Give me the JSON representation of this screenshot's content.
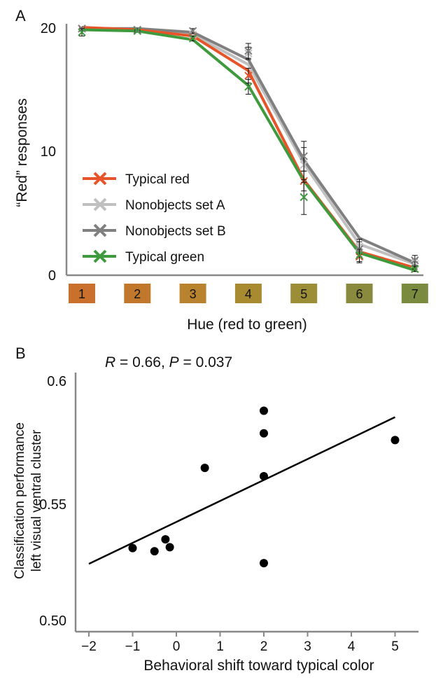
{
  "chart_data": [
    {
      "panel_label": "A",
      "type": "line",
      "xlabel": "Hue (red to green)",
      "ylabel": "“Red” responses",
      "categories": [
        "1",
        "2",
        "3",
        "4",
        "5",
        "6",
        "7"
      ],
      "category_colors": [
        "#C8702C",
        "#C2782C",
        "#B8822E",
        "#A88A30",
        "#9C8E36",
        "#8A8A3E",
        "#7A8A3E"
      ],
      "ylim": [
        0,
        20
      ],
      "yticks": [
        "0",
        "10",
        "20"
      ],
      "legend_position": "lower-left",
      "series": [
        {
          "name": "Typical red",
          "color": "#E8542A",
          "values": [
            20,
            19.8,
            19.3,
            16.5,
            7.7,
            1.9,
            0.6
          ],
          "markers": [
            19.9,
            19.8,
            19.3,
            16.1,
            7.6,
            1.5,
            0.5
          ],
          "errors": [
            0.1,
            0.1,
            0.2,
            0.6,
            0.8,
            0.5,
            0.2
          ]
        },
        {
          "name": "Nonobjects set A",
          "color": "#C0C0C0",
          "values": [
            19.9,
            19.8,
            19.4,
            17.0,
            9.0,
            2.5,
            0.9
          ],
          "markers": [
            19.9,
            19.8,
            19.4,
            17.9,
            8.9,
            2.3,
            0.9
          ],
          "errors": [
            0.1,
            0.1,
            0.2,
            0.5,
            1.4,
            0.6,
            0.4
          ]
        },
        {
          "name": "Nonobjects set B",
          "color": "#808080",
          "values": [
            19.9,
            19.9,
            19.6,
            17.4,
            9.3,
            3.0,
            1.0
          ],
          "markers": [
            19.9,
            19.8,
            19.7,
            18.1,
            9.6,
            2.1,
            1.2
          ],
          "errors": [
            0.1,
            0.1,
            0.2,
            0.6,
            1.2,
            0.6,
            0.4
          ]
        },
        {
          "name": "Typical green",
          "color": "#3F9A3E",
          "values": [
            19.8,
            19.7,
            19.0,
            15.3,
            7.6,
            1.8,
            0.4
          ],
          "markers": [
            19.6,
            19.7,
            19.1,
            15.2,
            6.3,
            1.6,
            0.5
          ],
          "errors": [
            0.3,
            0.1,
            0.2,
            0.6,
            1.4,
            0.5,
            0.2
          ]
        }
      ]
    },
    {
      "panel_label": "B",
      "type": "scatter",
      "annotation": {
        "r_label": "R",
        "r_value": " = 0.66, ",
        "p_label": "P",
        "p_value": " = 0.037"
      },
      "xlabel": "Behavioral shift toward typical color",
      "ylabel_line1": "Classification performance",
      "ylabel_line2": "left visual ventral cluster",
      "xlim": [
        -2,
        5.3
      ],
      "ylim": [
        0.4975,
        0.6
      ],
      "xticks": [
        "−2",
        "−1",
        "0",
        "1",
        "2",
        "3",
        "4",
        "5"
      ],
      "yticks": [
        "0.50",
        "0.55",
        "0.6"
      ],
      "points": [
        {
          "x": -1.0,
          "y": 0.5298
        },
        {
          "x": -0.5,
          "y": 0.5285
        },
        {
          "x": -0.25,
          "y": 0.5335
        },
        {
          "x": -0.15,
          "y": 0.5302
        },
        {
          "x": 0.65,
          "y": 0.5635
        },
        {
          "x": 2.0,
          "y": 0.5875
        },
        {
          "x": 2.0,
          "y": 0.578
        },
        {
          "x": 2.0,
          "y": 0.56
        },
        {
          "x": 2.0,
          "y": 0.5235
        },
        {
          "x": 5.0,
          "y": 0.5752
        }
      ],
      "fit_line": {
        "x": [
          -2,
          5
        ],
        "y": [
          0.5232,
          0.5848
        ]
      }
    }
  ]
}
